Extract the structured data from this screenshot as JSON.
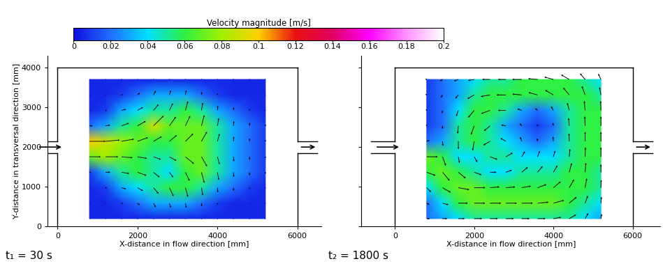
{
  "colorbar": {
    "title": "Velocity magnitude [m/s]",
    "range": [
      0,
      0.2
    ],
    "ticks": [
      0,
      0.02,
      0.04,
      0.06,
      0.08,
      0.1,
      0.12,
      0.14,
      0.16,
      0.18,
      0.2
    ]
  },
  "chart_data": [
    {
      "type": "heatmap",
      "annotation": "t₁ = 30 s",
      "xlabel": "X-distance in flow direction [mm]",
      "ylabel": "Y-distance in transversal direction [mm]",
      "xlim": [
        -250,
        6600
      ],
      "ylim": [
        0,
        4300
      ],
      "xticks": [
        0,
        2000,
        4000,
        6000
      ],
      "yticks": [
        0,
        1000,
        2000,
        3000,
        4000
      ],
      "x": [
        800,
        1200,
        1600,
        2000,
        2400,
        2800,
        3200,
        3600,
        4000,
        4400,
        4800,
        5200
      ],
      "y": [
        195,
        585,
        975,
        1365,
        1755,
        2145,
        2535,
        2925,
        3315,
        3705
      ],
      "cells": [
        [
          0.005,
          0.005,
          0.005,
          0.005,
          0.005,
          0.005,
          0.005,
          0.005,
          0.005,
          0.005,
          0.005,
          0.005
        ],
        [
          0.005,
          0.005,
          0.01,
          0.02,
          0.03,
          0.03,
          0.03,
          0.02,
          0.01,
          0.005,
          0.005,
          0.005
        ],
        [
          0.005,
          0.01,
          0.03,
          0.04,
          0.05,
          0.06,
          0.06,
          0.05,
          0.03,
          0.02,
          0.01,
          0.005
        ],
        [
          0.01,
          0.03,
          0.05,
          0.06,
          0.05,
          0.04,
          0.06,
          0.07,
          0.05,
          0.03,
          0.02,
          0.01
        ],
        [
          0.07,
          0.08,
          0.07,
          0.06,
          0.05,
          0.05,
          0.07,
          0.07,
          0.05,
          0.03,
          0.02,
          0.01
        ],
        [
          0.1,
          0.09,
          0.08,
          0.07,
          0.06,
          0.06,
          0.07,
          0.07,
          0.05,
          0.03,
          0.02,
          0.01
        ],
        [
          0.02,
          0.03,
          0.05,
          0.06,
          0.09,
          0.07,
          0.07,
          0.07,
          0.05,
          0.03,
          0.02,
          0.01
        ],
        [
          0.005,
          0.01,
          0.03,
          0.04,
          0.05,
          0.05,
          0.06,
          0.05,
          0.03,
          0.02,
          0.01,
          0.005
        ],
        [
          0.005,
          0.005,
          0.01,
          0.02,
          0.03,
          0.03,
          0.03,
          0.02,
          0.01,
          0.005,
          0.005,
          0.005
        ],
        [
          0.005,
          0.005,
          0.005,
          0.005,
          0.005,
          0.005,
          0.005,
          0.005,
          0.005,
          0.005,
          0.005,
          0.005
        ]
      ],
      "angles": [
        [
          0,
          0,
          -20,
          -40,
          -60,
          -75,
          -80,
          -85,
          -85,
          -85,
          -85,
          -85
        ],
        [
          0,
          0,
          -20,
          -40,
          -60,
          -75,
          -80,
          -85,
          -85,
          -85,
          -85,
          -85
        ],
        [
          0,
          0,
          -15,
          -30,
          -50,
          -65,
          -75,
          -80,
          -85,
          -85,
          -85,
          -85
        ],
        [
          0,
          0,
          -10,
          -20,
          -40,
          -55,
          -65,
          -75,
          -80,
          -85,
          -85,
          -85
        ],
        [
          0,
          0,
          -5,
          -10,
          -20,
          -30,
          -40,
          -60,
          -75,
          -85,
          -85,
          -85
        ],
        [
          0,
          5,
          10,
          20,
          30,
          40,
          45,
          60,
          75,
          85,
          85,
          85
        ],
        [
          0,
          10,
          20,
          30,
          45,
          55,
          65,
          75,
          80,
          85,
          85,
          85
        ],
        [
          0,
          0,
          15,
          30,
          50,
          65,
          75,
          80,
          85,
          85,
          85,
          85
        ],
        [
          0,
          0,
          20,
          40,
          60,
          75,
          80,
          85,
          85,
          85,
          85,
          85
        ],
        [
          0,
          0,
          20,
          40,
          60,
          75,
          80,
          85,
          85,
          85,
          85,
          85
        ]
      ]
    },
    {
      "type": "heatmap",
      "annotation": "t₂ = 1800 s",
      "xlabel": "X-distance in flow direction [mm]",
      "xlim": [
        -850,
        6700
      ],
      "ylim": [
        0,
        4300
      ],
      "xticks": [
        0,
        2000,
        4000,
        6000
      ],
      "yticks": [
        0,
        1000,
        2000,
        3000,
        4000
      ],
      "tick_labels": "x",
      "x": [
        800,
        1200,
        1600,
        2000,
        2400,
        2800,
        3200,
        3600,
        4000,
        4400,
        4800,
        5200
      ],
      "y": [
        195,
        585,
        975,
        1365,
        1755,
        2145,
        2535,
        2925,
        3315,
        3705
      ],
      "cells": [
        [
          0.02,
          0.03,
          0.04,
          0.05,
          0.05,
          0.05,
          0.05,
          0.05,
          0.05,
          0.05,
          0.04,
          0.03
        ],
        [
          0.02,
          0.04,
          0.06,
          0.07,
          0.07,
          0.07,
          0.07,
          0.07,
          0.07,
          0.06,
          0.05,
          0.04
        ],
        [
          0.04,
          0.06,
          0.07,
          0.07,
          0.06,
          0.06,
          0.06,
          0.06,
          0.06,
          0.06,
          0.06,
          0.05
        ],
        [
          0.06,
          0.07,
          0.06,
          0.05,
          0.04,
          0.04,
          0.05,
          0.05,
          0.05,
          0.06,
          0.06,
          0.05
        ],
        [
          0.07,
          0.06,
          0.04,
          0.04,
          0.05,
          0.05,
          0.04,
          0.04,
          0.04,
          0.05,
          0.06,
          0.06
        ],
        [
          0.02,
          0.03,
          0.05,
          0.06,
          0.05,
          0.04,
          0.03,
          0.02,
          0.03,
          0.05,
          0.06,
          0.06
        ],
        [
          0.01,
          0.02,
          0.05,
          0.06,
          0.05,
          0.03,
          0.02,
          0.01,
          0.02,
          0.05,
          0.06,
          0.06
        ],
        [
          0.01,
          0.02,
          0.04,
          0.06,
          0.06,
          0.05,
          0.03,
          0.02,
          0.03,
          0.05,
          0.06,
          0.06
        ],
        [
          0.01,
          0.02,
          0.03,
          0.05,
          0.06,
          0.06,
          0.06,
          0.06,
          0.06,
          0.06,
          0.06,
          0.05
        ],
        [
          0.01,
          0.02,
          0.03,
          0.04,
          0.05,
          0.05,
          0.06,
          0.06,
          0.06,
          0.06,
          0.05,
          0.04
        ]
      ],
      "angles": [
        [
          0,
          0,
          0,
          0,
          0,
          0,
          0,
          0,
          10,
          30,
          60,
          80
        ],
        [
          -30,
          -15,
          0,
          0,
          0,
          0,
          0,
          5,
          15,
          40,
          70,
          85
        ],
        [
          -45,
          -30,
          -10,
          0,
          5,
          5,
          10,
          20,
          40,
          60,
          80,
          88
        ],
        [
          -20,
          -50,
          -40,
          -20,
          0,
          20,
          40,
          50,
          60,
          75,
          85,
          90
        ],
        [
          0,
          -70,
          -80,
          -60,
          -20,
          30,
          60,
          70,
          75,
          85,
          88,
          90
        ],
        [
          20,
          -85,
          -90,
          -100,
          -150,
          150,
          110,
          100,
          95,
          92,
          90,
          90
        ],
        [
          90,
          -90,
          -95,
          -110,
          -140,
          170,
          130,
          110,
          100,
          95,
          92,
          90
        ],
        [
          120,
          -100,
          -110,
          -130,
          -160,
          180,
          160,
          140,
          120,
          105,
          95,
          92
        ],
        [
          150,
          -120,
          -130,
          -150,
          -170,
          180,
          175,
          165,
          150,
          130,
          110,
          100
        ],
        [
          170,
          -150,
          -160,
          -170,
          180,
          180,
          180,
          175,
          165,
          150,
          130,
          115
        ]
      ]
    }
  ]
}
